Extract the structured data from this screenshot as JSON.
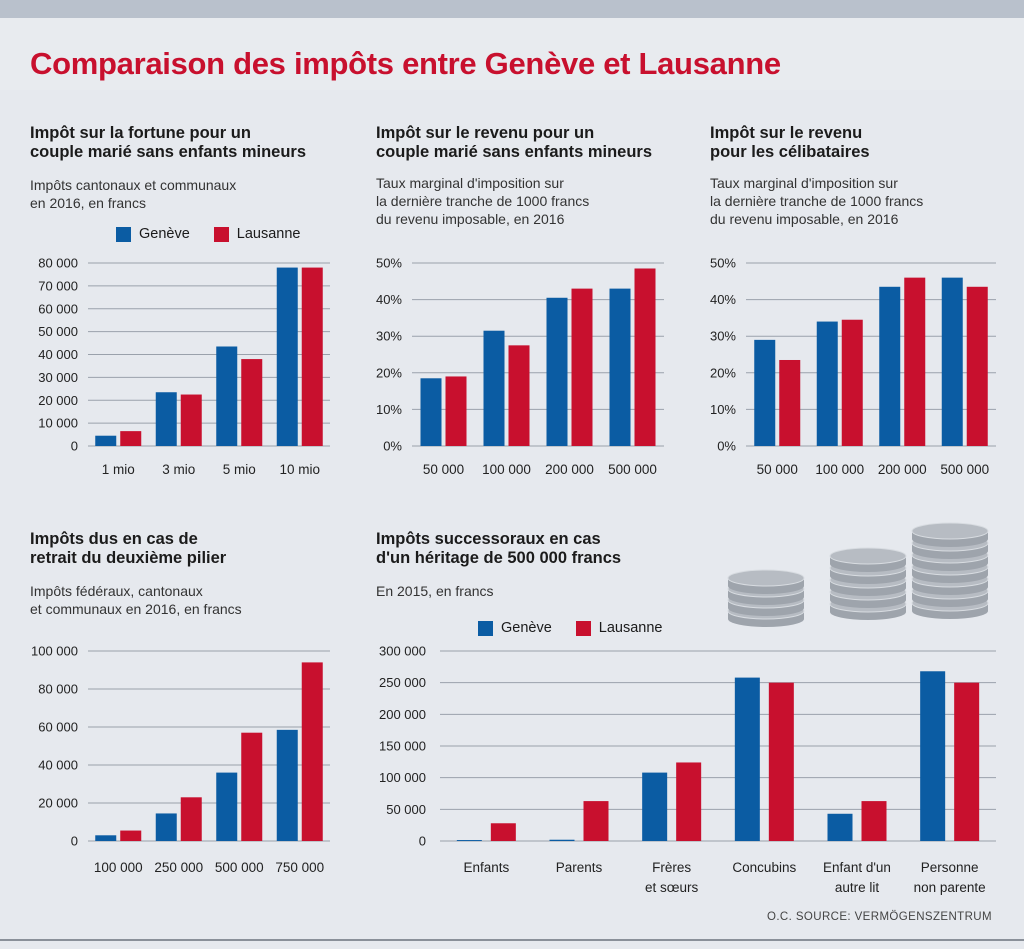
{
  "title": "Comparaison des impôts entre Genève et Lausanne",
  "colors": {
    "geneve": "#0b5ca3",
    "lausanne": "#c8102e",
    "grid": "#9aa1ab",
    "coin": "#b7bcc3"
  },
  "legend": {
    "geneve": "Genève",
    "lausanne": "Lausanne"
  },
  "source": "O.C. SOURCE: VERMÖGENSZENTRUM",
  "chart_data": [
    {
      "id": "fortune",
      "type": "bar",
      "title_lines": [
        "Impôt sur la fortune pour un",
        "couple marié sans enfants mineurs"
      ],
      "subtitle_lines": [
        "Impôts cantonaux et communaux",
        "en 2016, en francs"
      ],
      "categories": [
        "1 mio",
        "3 mio",
        "5 mio",
        "10 mio"
      ],
      "series": [
        {
          "name": "Genève",
          "values": [
            4500,
            23500,
            43500,
            78000
          ]
        },
        {
          "name": "Lausanne",
          "values": [
            6500,
            22500,
            38000,
            78000
          ]
        }
      ],
      "yticks": [
        0,
        10000,
        20000,
        30000,
        40000,
        50000,
        60000,
        70000,
        80000
      ],
      "ytick_labels": [
        "0",
        "10 000",
        "20 000",
        "30 000",
        "40 000",
        "50 000",
        "60 000",
        "70 000",
        "80 000"
      ],
      "ylim": [
        0,
        80000
      ]
    },
    {
      "id": "revenu-couple",
      "type": "bar",
      "title_lines": [
        "Impôt sur le revenu pour un",
        "couple marié sans enfants mineurs"
      ],
      "subtitle_lines": [
        "Taux marginal d'imposition sur",
        "la dernière tranche de 1000 francs",
        "du revenu imposable, en 2016"
      ],
      "categories": [
        "50 000",
        "100 000",
        "200 000",
        "500 000"
      ],
      "series": [
        {
          "name": "Genève",
          "values": [
            18.5,
            31.5,
            40.5,
            43
          ]
        },
        {
          "name": "Lausanne",
          "values": [
            19,
            27.5,
            43,
            48.5
          ]
        }
      ],
      "yticks": [
        0,
        10,
        20,
        30,
        40,
        50
      ],
      "ytick_labels": [
        "0%",
        "10%",
        "20%",
        "30%",
        "40%",
        "50%"
      ],
      "ylim": [
        0,
        50
      ]
    },
    {
      "id": "revenu-celibataires",
      "type": "bar",
      "title_lines": [
        "Impôt sur le revenu",
        "pour les célibataires"
      ],
      "subtitle_lines": [
        "Taux marginal d'imposition sur",
        "la dernière tranche de 1000 francs",
        "du revenu imposable, en 2016"
      ],
      "categories": [
        "50 000",
        "100 000",
        "200 000",
        "500 000"
      ],
      "series": [
        {
          "name": "Genève",
          "values": [
            29,
            34,
            43.5,
            46
          ]
        },
        {
          "name": "Lausanne",
          "values": [
            23.5,
            34.5,
            46,
            43.5
          ]
        }
      ],
      "yticks": [
        0,
        10,
        20,
        30,
        40,
        50
      ],
      "ytick_labels": [
        "0%",
        "10%",
        "20%",
        "30%",
        "40%",
        "50%"
      ],
      "ylim": [
        0,
        50
      ]
    },
    {
      "id": "pilier",
      "type": "bar",
      "title_lines": [
        "Impôts dus en cas de",
        "retrait du deuxième pilier"
      ],
      "subtitle_lines": [
        "Impôts fédéraux, cantonaux",
        "et communaux en 2016, en francs"
      ],
      "categories": [
        "100 000",
        "250 000",
        "500 000",
        "750 000"
      ],
      "series": [
        {
          "name": "Genève",
          "values": [
            3000,
            14500,
            36000,
            58500
          ]
        },
        {
          "name": "Lausanne",
          "values": [
            5500,
            23000,
            57000,
            94000
          ]
        }
      ],
      "yticks": [
        0,
        20000,
        40000,
        60000,
        80000,
        100000
      ],
      "ytick_labels": [
        "0",
        "20 000",
        "40 000",
        "60 000",
        "80 000",
        "100 000"
      ],
      "ylim": [
        0,
        100000
      ]
    },
    {
      "id": "successions",
      "type": "bar",
      "title_lines": [
        "Impôts successoraux en cas",
        "d'un héritage de 500 000 francs"
      ],
      "subtitle_lines": [
        "En 2015, en francs"
      ],
      "categories": [
        "Enfants",
        "Parents",
        "Frères\net sœurs",
        "Concubins",
        "Enfant d'un\nautre lit",
        "Personne\nnon parente"
      ],
      "series": [
        {
          "name": "Genève",
          "values": [
            1500,
            2000,
            108000,
            258000,
            43000,
            268000
          ]
        },
        {
          "name": "Lausanne",
          "values": [
            28000,
            63000,
            124000,
            250000,
            63000,
            250000
          ]
        }
      ],
      "yticks": [
        0,
        50000,
        100000,
        150000,
        200000,
        250000,
        300000
      ],
      "ytick_labels": [
        "0",
        "50 000",
        "100 000",
        "150 000",
        "200 000",
        "250 000",
        "300 000"
      ],
      "ylim": [
        0,
        300000
      ]
    }
  ]
}
